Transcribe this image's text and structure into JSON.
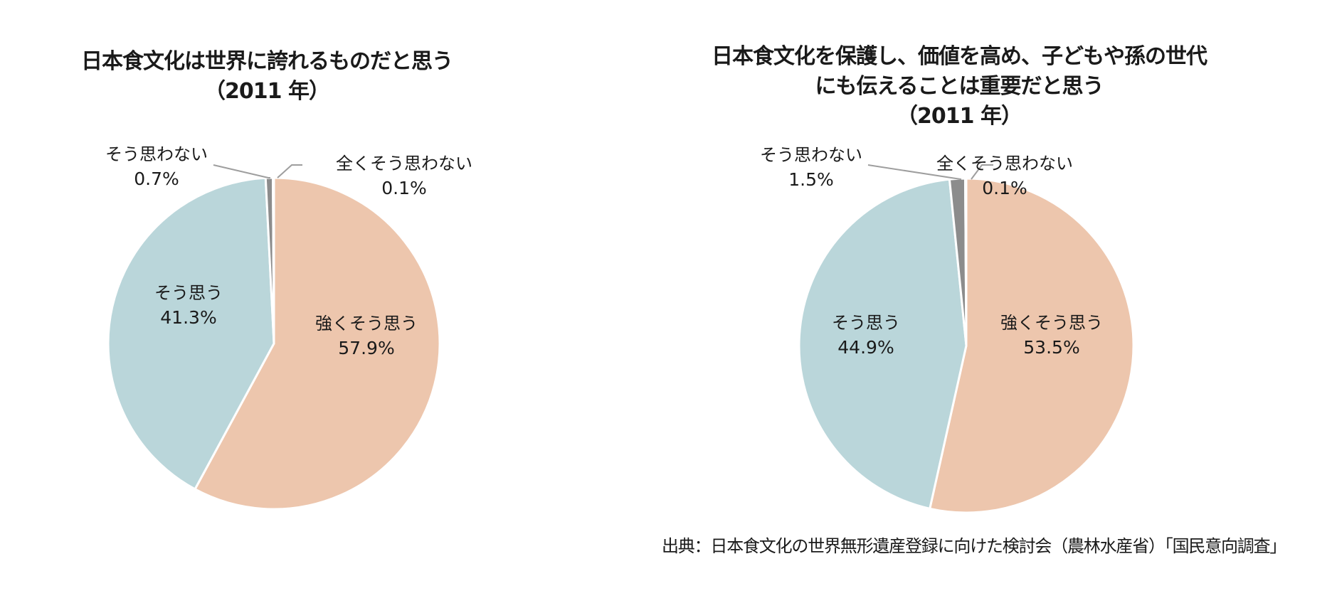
{
  "source": "出典：日本食文化の世界無形遺産登録に向けた検討会（農林水産省）「国民意向調査」",
  "colors": {
    "strongly_agree": "#EDC6AD",
    "agree": "#BAD6DA",
    "disagree": "#8C8C8C",
    "strongly_disagree": "#AAAAAA",
    "leader_line": "#9E9E9E",
    "text": "#1a1a1a"
  },
  "chart_data": [
    {
      "type": "pie",
      "title": [
        "日本食文化は世界に誇れるものだと思う",
        "（2011 年）"
      ],
      "slices": [
        {
          "label": "強くそう思う",
          "value": 57.9,
          "value_text": "57.9%",
          "color_key": "strongly_agree"
        },
        {
          "label": "そう思う",
          "value": 41.3,
          "value_text": "41.3%",
          "color_key": "agree"
        },
        {
          "label": "そう思わない",
          "value": 0.7,
          "value_text": "0.7%",
          "color_key": "disagree"
        },
        {
          "label": "全くそう思わない",
          "value": 0.1,
          "value_text": "0.1%",
          "color_key": "strongly_disagree"
        }
      ]
    },
    {
      "type": "pie",
      "title": [
        "日本食文化を保護し、価値を高め、子どもや孫の世代",
        "にも伝えることは重要だと思う",
        "（2011 年）"
      ],
      "slices": [
        {
          "label": "強くそう思う",
          "value": 53.5,
          "value_text": "53.5%",
          "color_key": "strongly_agree"
        },
        {
          "label": "そう思う",
          "value": 44.9,
          "value_text": "44.9%",
          "color_key": "agree"
        },
        {
          "label": "そう思わない",
          "value": 1.5,
          "value_text": "1.5%",
          "color_key": "disagree"
        },
        {
          "label": "全くそう思わない",
          "value": 0.1,
          "value_text": "0.1%",
          "color_key": "strongly_disagree"
        }
      ]
    }
  ]
}
